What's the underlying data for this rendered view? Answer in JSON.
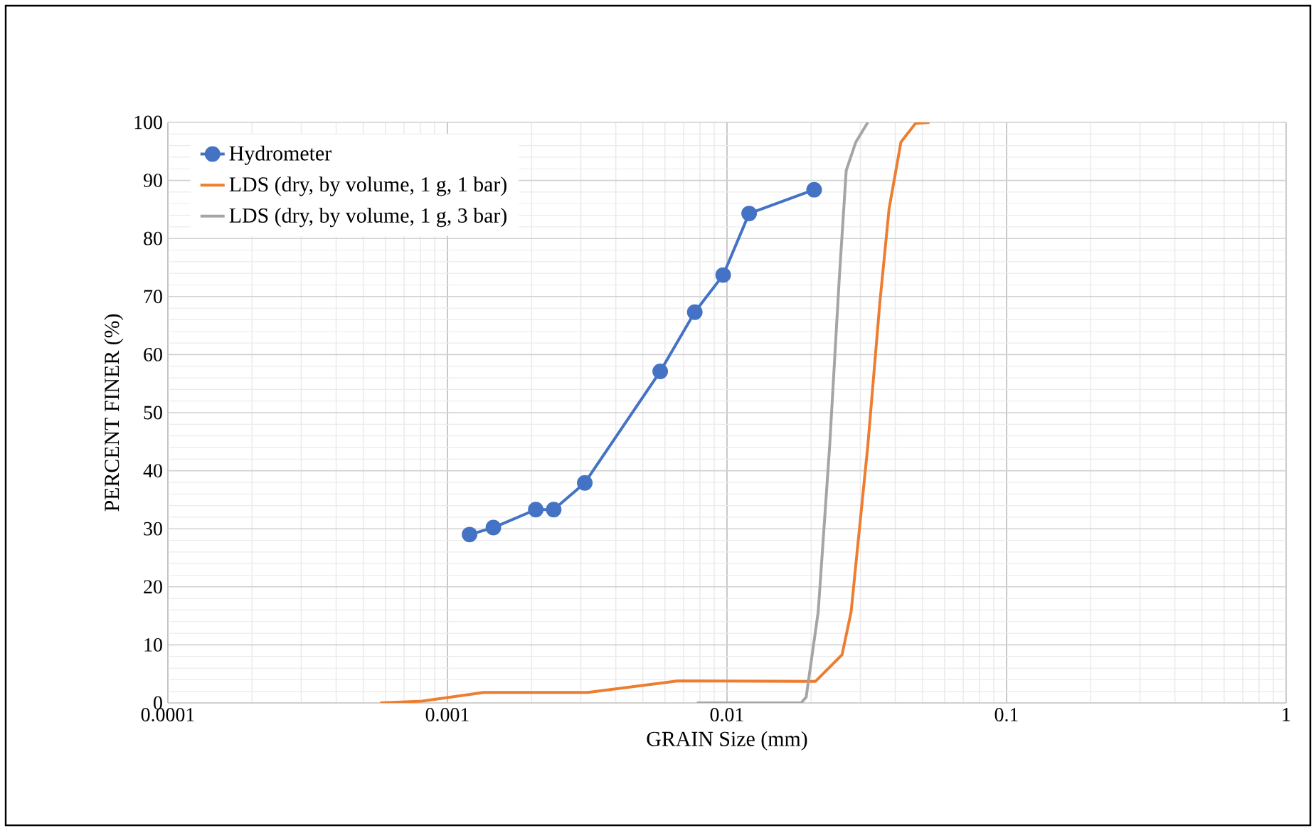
{
  "chart_data": {
    "type": "line",
    "xlabel": "GRAIN Size (mm)",
    "ylabel": "PERCENT FINER (%)",
    "log": "x",
    "grid": true,
    "legend": "top left",
    "xlim": [
      0.0001,
      1
    ],
    "xticks": [
      0.0001,
      0.001,
      0.01,
      0.1,
      1
    ],
    "ylim": [
      0,
      100
    ],
    "yticks": [
      0,
      10,
      20,
      30,
      40,
      50,
      60,
      70,
      80,
      90,
      100
    ],
    "series": [
      {
        "name": "Hydrometer",
        "color": "#4472c4",
        "marker": "circle",
        "x": [
          0.0012,
          0.00146,
          0.00207,
          0.0024,
          0.0031,
          0.00577,
          0.00767,
          0.00969,
          0.012,
          0.0205
        ],
        "values": [
          29.0,
          30.2,
          33.3,
          33.3,
          37.9,
          57.1,
          67.3,
          73.7,
          84.3,
          88.4
        ]
      },
      {
        "name": "LDS (dry, by volume, 1 g, 1 bar)",
        "color": "#ed7d31",
        "marker": "none",
        "x": [
          0.000575,
          0.00081,
          0.00135,
          0.00318,
          0.00669,
          0.01845,
          0.0207,
          0.0258,
          0.0278,
          0.0289,
          0.0319,
          0.0352,
          0.038,
          0.0419,
          0.0472,
          0.053
        ],
        "values": [
          0,
          0.3,
          1.8,
          1.8,
          3.8,
          3.7,
          3.7,
          8.3,
          15.7,
          23.8,
          44.3,
          68.8,
          85.1,
          96.6,
          99.8,
          100
        ]
      },
      {
        "name": "LDS (dry, by volume, 1 g, 3 bar)",
        "color": "#a5a5a5",
        "marker": "none",
        "x": [
          0.0078,
          0.0184,
          0.0192,
          0.0212,
          0.0233,
          0.0252,
          0.0267,
          0.0289,
          0.0319
        ],
        "values": [
          0,
          0,
          1,
          15.7,
          44.3,
          72.9,
          91.7,
          96.6,
          100
        ]
      }
    ]
  }
}
